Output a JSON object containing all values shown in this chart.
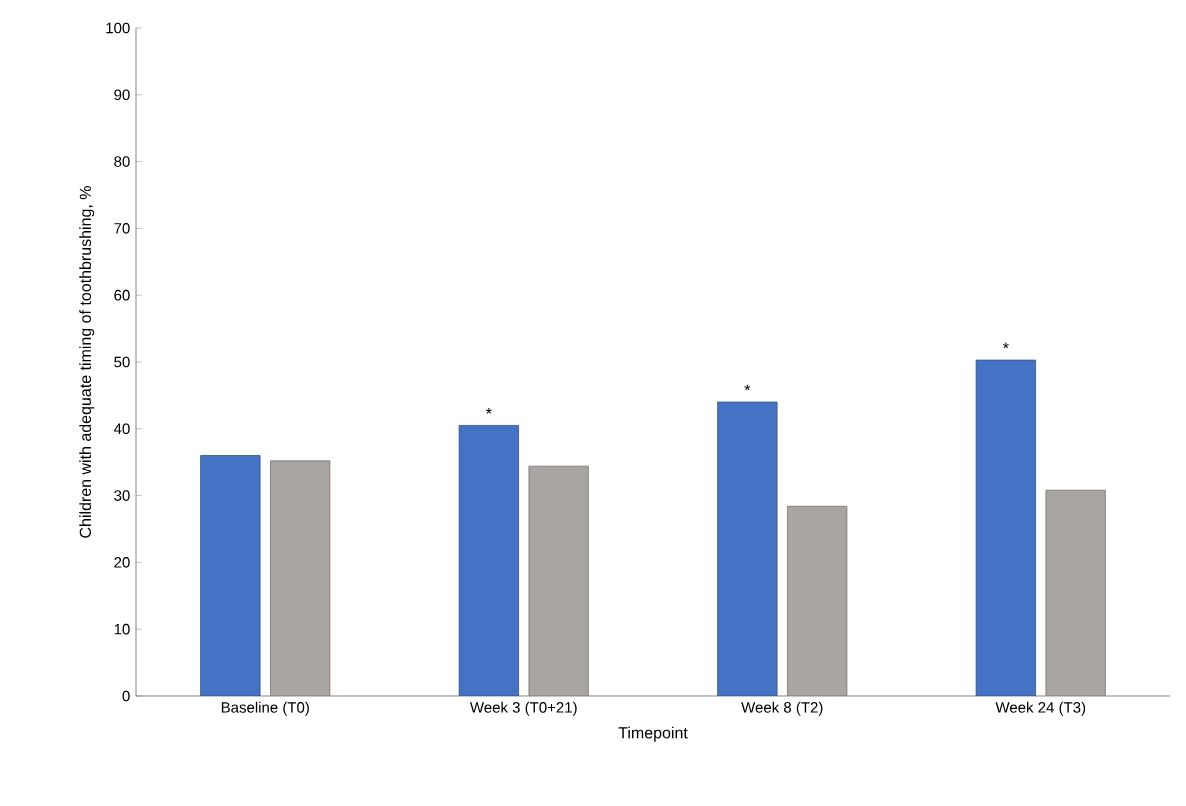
{
  "chart_data": {
    "type": "bar",
    "xlabel": "Timepoint",
    "ylabel": "Children with adequate timing of toothbrushing, %",
    "categories": [
      "Baseline (T0)",
      "Week 3 (T0+21)",
      "Week 8 (T2)",
      "Week 24 (T3)"
    ],
    "series": [
      {
        "color": "#4472c4",
        "values": [
          36,
          40.5,
          44,
          50.3
        ]
      },
      {
        "color": "#a9a5a3",
        "values": [
          35.2,
          34.4,
          28.4,
          30.8
        ]
      }
    ],
    "ylim": [
      0,
      100
    ],
    "yticks": [
      0,
      10,
      20,
      30,
      40,
      50,
      60,
      70,
      80,
      90,
      100
    ],
    "grid": false,
    "annotations": [
      {
        "text": "*",
        "x": "Week 3 (T0+21)",
        "y": 40.5
      },
      {
        "text": "*",
        "x": "Week 8 (T2)",
        "y": 44
      },
      {
        "text": "*",
        "x": "Week 24 (T3)",
        "y": 50.3
      }
    ]
  }
}
